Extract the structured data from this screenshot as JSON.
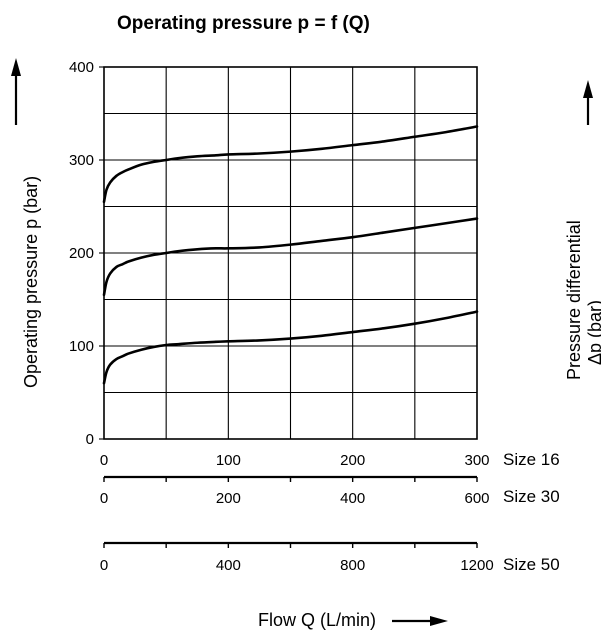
{
  "chart_data": {
    "type": "line",
    "title": "Operating pressure p = f (Q)",
    "ylabel": "Operating pressure p (bar)",
    "xlabel": "Flow Q (L/min)",
    "right_label_line1": "Pressure differential",
    "right_label_line2": "Δp (bar)",
    "ylim": [
      0,
      400
    ],
    "xlim": [
      0,
      300
    ],
    "y_ticks": [
      "0",
      "100",
      "200",
      "300",
      "400"
    ],
    "x_axes": [
      {
        "label": "Size 16",
        "ticks": [
          "0",
          "100",
          "200",
          "300"
        ],
        "max": 300
      },
      {
        "label": "Size 30",
        "ticks": [
          "0",
          "200",
          "400",
          "600"
        ],
        "max": 600
      },
      {
        "label": "Size 50",
        "ticks": [
          "0",
          "400",
          "800",
          "1200"
        ],
        "max": 1200
      }
    ],
    "series": [
      {
        "x": [
          0,
          2,
          5,
          10,
          15,
          20,
          30,
          40,
          50,
          60,
          75,
          90,
          100,
          125,
          150,
          175,
          200,
          225,
          250,
          275,
          300
        ],
        "values": [
          60,
          72,
          80,
          86,
          89,
          92,
          96,
          99,
          101,
          102,
          103.5,
          104.5,
          105,
          106,
          108,
          111,
          115,
          119,
          124,
          130,
          137
        ]
      },
      {
        "x": [
          0,
          2,
          5,
          10,
          15,
          20,
          30,
          40,
          50,
          60,
          75,
          90,
          100,
          125,
          150,
          175,
          200,
          225,
          250,
          275,
          300
        ],
        "values": [
          155,
          169,
          178,
          185,
          188,
          191,
          195,
          198,
          200,
          202,
          204,
          205,
          205,
          206,
          209,
          213,
          217,
          222,
          227,
          232,
          237
        ]
      },
      {
        "x": [
          0,
          2,
          5,
          10,
          15,
          20,
          30,
          40,
          50,
          60,
          75,
          90,
          100,
          125,
          150,
          175,
          200,
          225,
          250,
          275,
          300
        ],
        "values": [
          255,
          268,
          276,
          283,
          287,
          290,
          295,
          298,
          300,
          302,
          304,
          305,
          306,
          307,
          309,
          312,
          316,
          320,
          325,
          330,
          336
        ]
      }
    ]
  }
}
